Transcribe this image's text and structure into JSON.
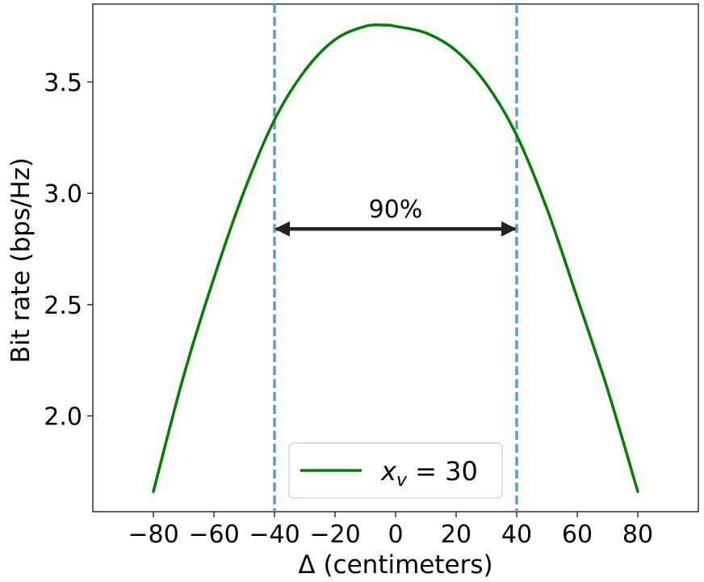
{
  "chart_data": {
    "type": "line",
    "xlabel": "Δ (centimeters)",
    "ylabel": "Bit rate (bps/Hz)",
    "xlim": [
      -100,
      100
    ],
    "ylim": [
      1.57,
      3.85
    ],
    "x_ticks": [
      -80,
      -60,
      -40,
      -20,
      0,
      20,
      40,
      60,
      80
    ],
    "x_tick_labels": [
      "−80",
      "−60",
      "−40",
      "−20",
      "0",
      "20",
      "40",
      "60",
      "80"
    ],
    "y_ticks": [
      2.0,
      2.5,
      3.0,
      3.5
    ],
    "y_tick_labels": [
      "2.0",
      "2.5",
      "3.0",
      "3.5"
    ],
    "grid": false,
    "legend_position": "bottom-center",
    "series": [
      {
        "name": "x_v = 30",
        "legend_main": "x",
        "legend_sub": "v",
        "legend_rest": " = 30",
        "color": "#008000",
        "x": [
          -80,
          -70,
          -60,
          -50,
          -40,
          -30,
          -20,
          -10,
          -3,
          0,
          10,
          20,
          30,
          40,
          50,
          60,
          70,
          80
        ],
        "y": [
          1.66,
          2.18,
          2.62,
          3.01,
          3.33,
          3.55,
          3.69,
          3.75,
          3.755,
          3.75,
          3.72,
          3.64,
          3.49,
          3.26,
          2.93,
          2.53,
          2.12,
          1.66
        ]
      }
    ],
    "vlines": {
      "x": [
        -40,
        40
      ],
      "color": "#5b9bd5",
      "style": "dashed"
    },
    "annotation": {
      "text": "90%",
      "arrow_x_from": -40,
      "arrow_x_to": 40,
      "arrow_y": 2.84,
      "text_y": 2.92,
      "color": "#222222"
    }
  }
}
